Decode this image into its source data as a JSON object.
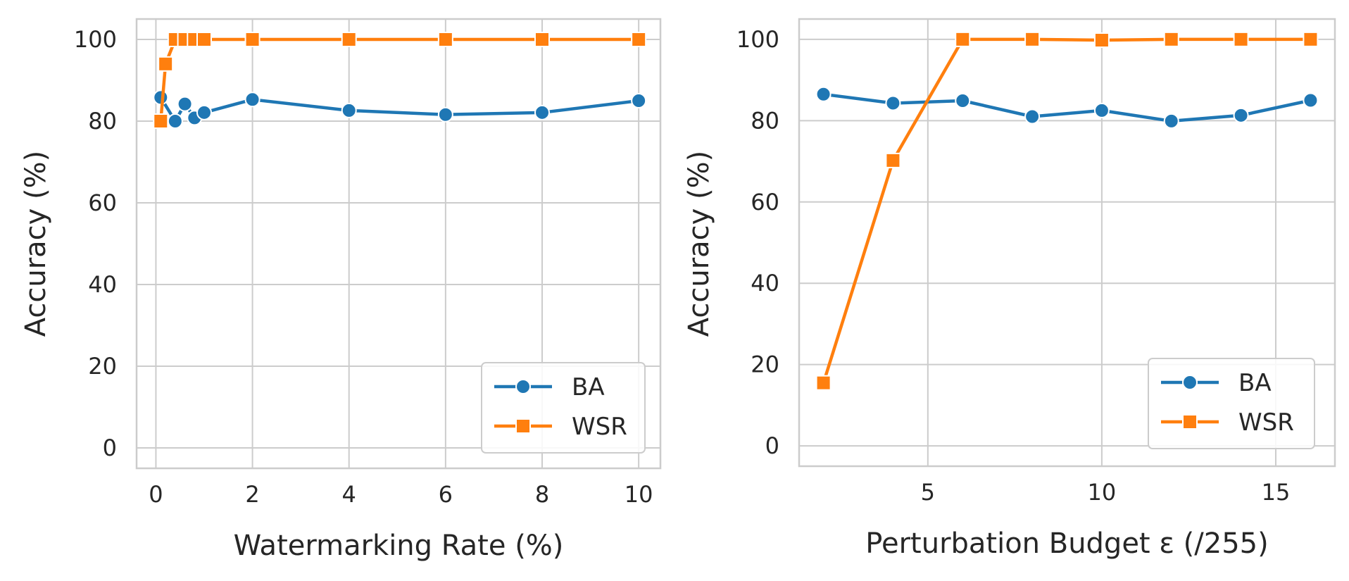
{
  "chart_data": [
    {
      "type": "line",
      "xlabel": "Watermarking Rate (%)",
      "ylabel": "Accuracy (%)",
      "xlim": [
        -0.4,
        10.45
      ],
      "ylim": [
        -5,
        105
      ],
      "xticks": [
        0,
        2,
        4,
        6,
        8,
        10
      ],
      "xtick_labels": [
        "0",
        "2",
        "4",
        "6",
        "8",
        "10"
      ],
      "yticks": [
        0,
        20,
        40,
        60,
        80,
        100
      ],
      "ytick_labels": [
        "0",
        "20",
        "40",
        "60",
        "80",
        "100"
      ],
      "grid": true,
      "legend_position": "lower-right",
      "series": [
        {
          "name": "BA",
          "color": "#1f77b4",
          "marker": "circle",
          "x": [
            0.1,
            0.4,
            0.6,
            0.8,
            1,
            2,
            4,
            6,
            8,
            10
          ],
          "y": [
            85.8,
            80.0,
            84.2,
            80.8,
            82.1,
            85.3,
            82.6,
            81.6,
            82.1,
            85.0
          ]
        },
        {
          "name": "WSR",
          "color": "#ff7f0e",
          "marker": "square",
          "x": [
            0.1,
            0.2,
            0.4,
            0.6,
            0.8,
            1,
            2,
            4,
            6,
            8,
            10
          ],
          "y": [
            80.0,
            94.0,
            100,
            100,
            100,
            100,
            100,
            100,
            100,
            100,
            100
          ]
        }
      ]
    },
    {
      "type": "line",
      "xlabel": "Perturbation Budget ε (/255)",
      "ylabel": "Accuracy (%)",
      "xlim": [
        1.3,
        16.7
      ],
      "ylim": [
        -5,
        105
      ],
      "xticks": [
        5,
        10,
        15
      ],
      "xtick_labels": [
        "5",
        "10",
        "15"
      ],
      "yticks": [
        0,
        20,
        40,
        60,
        80,
        100
      ],
      "ytick_labels": [
        "0",
        "20",
        "40",
        "60",
        "80",
        "100"
      ],
      "grid": true,
      "legend_position": "lower-right",
      "series": [
        {
          "name": "BA",
          "color": "#1f77b4",
          "marker": "circle",
          "x": [
            2,
            4,
            6,
            8,
            10,
            12,
            14,
            16
          ],
          "y": [
            86.5,
            84.3,
            84.9,
            81.0,
            82.5,
            79.9,
            81.3,
            85.0
          ]
        },
        {
          "name": "WSR",
          "color": "#ff7f0e",
          "marker": "square",
          "x": [
            2,
            4,
            6,
            8,
            10,
            12,
            14,
            16
          ],
          "y": [
            15.5,
            70.2,
            100,
            100,
            99.8,
            100,
            100,
            100
          ]
        }
      ]
    }
  ]
}
